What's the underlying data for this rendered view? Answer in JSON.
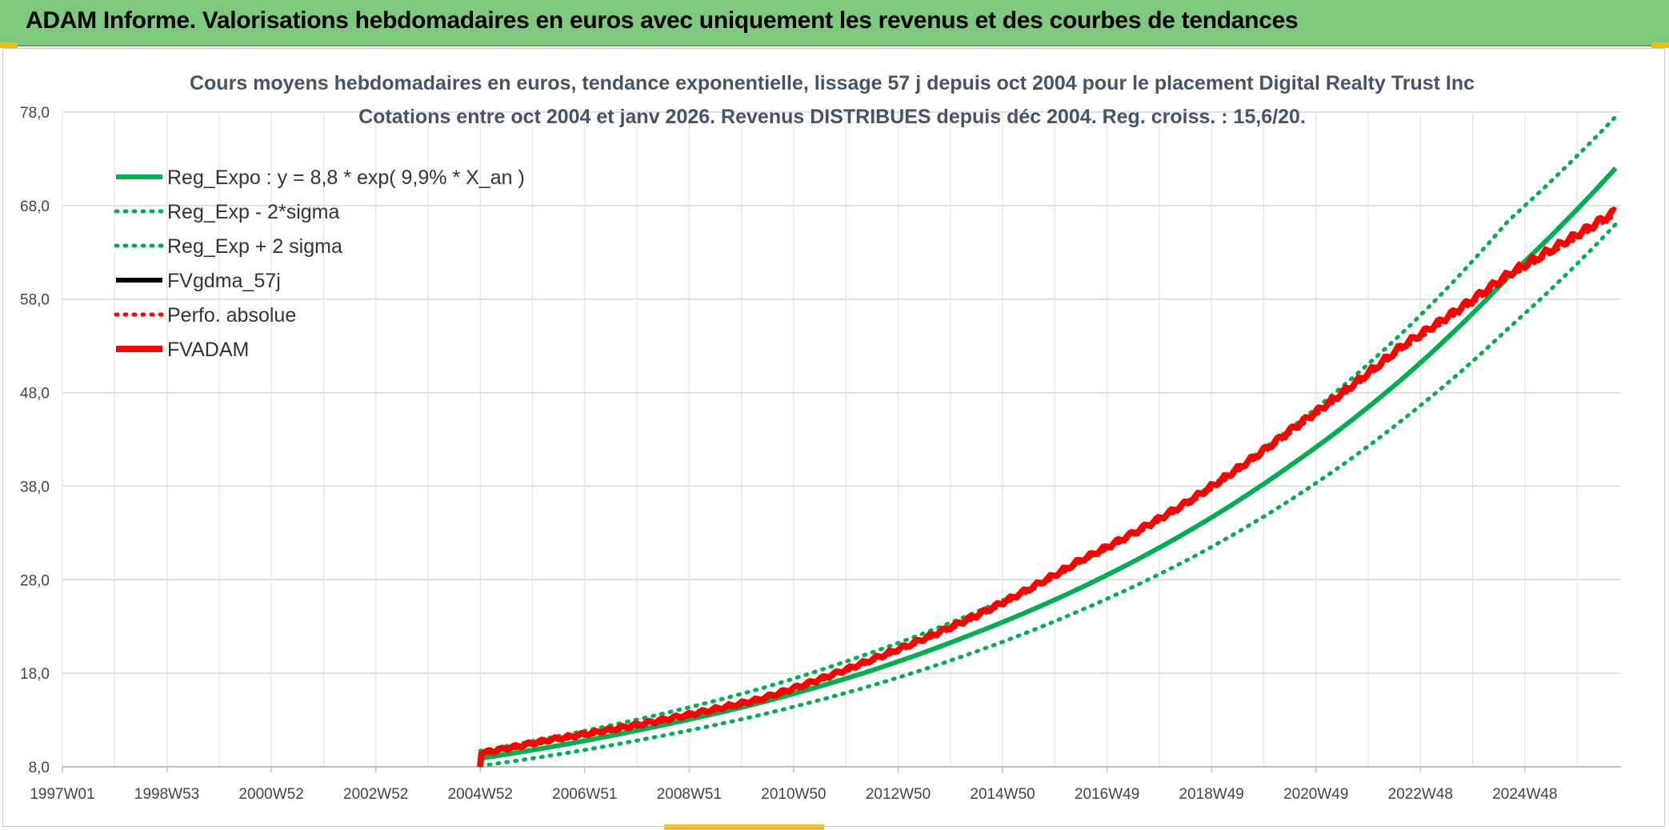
{
  "header": {
    "title": "ADAM Informe. Valorisations hebdomadaires en euros avec uniquement les revenus et des courbes de tendances"
  },
  "chart_data": {
    "type": "line",
    "title_line1": "Cours moyens hebdomadaires en euros, tendance exponentielle, lissage 57 j depuis oct 2004 pour le placement Digital Realty Trust Inc",
    "title_line2": "Cotations entre oct 2004 et janv 2026. Revenus DISTRIBUES depuis déc 2004. Reg. croiss. : 15,6/20.",
    "xlabel": "",
    "ylabel": "",
    "ylim": [
      8,
      78
    ],
    "y_ticks": [
      "8,0",
      "18,0",
      "28,0",
      "38,0",
      "48,0",
      "58,0",
      "68,0",
      "78,0"
    ],
    "x_ticks": [
      "1997W01",
      "1998W53",
      "2000W52",
      "2002W52",
      "2004W52",
      "2006W51",
      "2008W51",
      "2010W50",
      "2012W50",
      "2014W50",
      "2016W49",
      "2018W49",
      "2020W49",
      "2022W48",
      "2024W48"
    ],
    "x_range_years": [
      1997.0,
      2026.1
    ],
    "grid": true,
    "legend_position": "top-left",
    "series": [
      {
        "name": "Reg_Expo : y = 8,8 * exp( 9,9% *  X_an )",
        "color": "#00b050",
        "style": "solid",
        "x": [
          2004.8,
          2006,
          2008,
          2010,
          2012,
          2014,
          2016,
          2018,
          2020,
          2022,
          2024,
          2026
        ],
        "values": [
          8.9,
          10.0,
          12.2,
          14.8,
          18.1,
          22.2,
          27.1,
          33.1,
          40.5,
          49.4,
          60.4,
          72.0
        ]
      },
      {
        "name": "Reg_Exp - 2*sigma",
        "color": "#00b050",
        "style": "dotted",
        "x": [
          2004.8,
          2006,
          2008,
          2010,
          2012,
          2014,
          2016,
          2018,
          2020,
          2022,
          2024,
          2026
        ],
        "values": [
          8.1,
          9.1,
          11.1,
          13.5,
          16.5,
          20.2,
          24.7,
          30.1,
          36.8,
          45.0,
          54.9,
          66.0
        ]
      },
      {
        "name": "Reg_Exp + 2 sigma",
        "color": "#00b050",
        "style": "dotted",
        "x": [
          2004.8,
          2006,
          2008,
          2010,
          2012,
          2014,
          2016,
          2018,
          2020,
          2022,
          2024,
          2026
        ],
        "values": [
          9.7,
          11.0,
          13.4,
          16.3,
          20.0,
          24.4,
          29.8,
          36.4,
          44.5,
          54.3,
          66.4,
          77.5
        ]
      },
      {
        "name": "FVgdma_57j",
        "color": "#000000",
        "style": "solid",
        "x": [],
        "values": []
      },
      {
        "name": "Perfo. absolue",
        "color": "#ff0000",
        "style": "dotted",
        "x": [
          2004.8,
          2006,
          2008,
          2010,
          2012,
          2014,
          2016,
          2018,
          2020,
          2022,
          2024,
          2026
        ],
        "values": [
          9.3,
          10.6,
          12.6,
          15.0,
          19.0,
          23.8,
          29.8,
          36.0,
          44.0,
          52.6,
          60.3,
          67.0
        ]
      },
      {
        "name": "FVADAM",
        "color": "#ff0000",
        "style": "solid",
        "x": [
          2004.8,
          2004.82,
          2006,
          2008,
          2010,
          2012,
          2014,
          2016,
          2018,
          2020,
          2022,
          2024,
          2026
        ],
        "values": [
          8.0,
          9.3,
          10.6,
          12.6,
          15.0,
          19.0,
          23.8,
          29.8,
          36.0,
          44.0,
          52.6,
          60.3,
          67.0
        ]
      }
    ]
  }
}
